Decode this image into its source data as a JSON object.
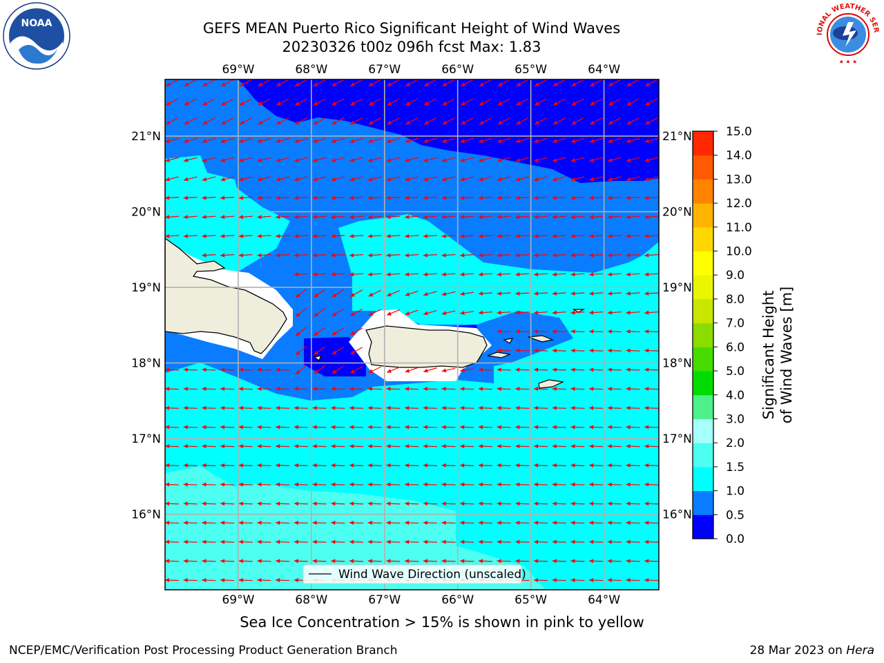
{
  "header": {
    "title_line1": "GEFS MEAN Puerto Rico Significant Height of Wind Waves",
    "title_line2": "20230326 t00z 096h fcst   Max: 1.83"
  },
  "logos": {
    "left": {
      "name": "noaa-logo",
      "text": "NOAA"
    },
    "right": {
      "name": "nws-logo",
      "text": "NATIONAL WEATHER SERVICE"
    }
  },
  "map": {
    "lon_labels": [
      "69°W",
      "68°W",
      "67°W",
      "66°W",
      "65°W",
      "64°W"
    ],
    "lat_labels": [
      "21°N",
      "20°N",
      "19°N",
      "18°N",
      "17°N",
      "16°N"
    ],
    "lon_values": [
      -69,
      -68,
      -67,
      -66,
      -65,
      -64
    ],
    "lat_values": [
      21,
      20,
      19,
      18,
      17,
      16
    ],
    "extent": {
      "lon_min": -70.0,
      "lon_max": -63.25,
      "lat_min": 15.0,
      "lat_max": 21.75
    },
    "wind_direction": "easterly",
    "arrow_color": "#ff0000",
    "land_color": "#efeedd",
    "legend_label": "Wind Wave Direction (unscaled)"
  },
  "colorbar": {
    "title": "Significant Height of Wind Waves [m]",
    "ticks": [
      "0.0",
      "0.5",
      "1.0",
      "1.5",
      "2.0",
      "3.0",
      "4.0",
      "5.0",
      "6.0",
      "7.0",
      "8.0",
      "9.0",
      "10.0",
      "11.0",
      "12.0",
      "13.0",
      "14.0",
      "15.0"
    ],
    "colors": [
      "#0000ff",
      "#0a7cff",
      "#00ffff",
      "#4dfff0",
      "#a6fffa",
      "#4df08a",
      "#00dc00",
      "#46dc00",
      "#8cdc00",
      "#c8e600",
      "#eaf500",
      "#ffff00",
      "#ffd700",
      "#ffb400",
      "#ff8200",
      "#ff5a00",
      "#ff2800"
    ]
  },
  "footer": {
    "note": "Sea Ice Concentration > 15% is shown in pink to yellow",
    "credit": "NCEP/EMC/Verification Post Processing Product Generation Branch",
    "date": "28 Mar 2023 on ",
    "host": "Hera"
  }
}
